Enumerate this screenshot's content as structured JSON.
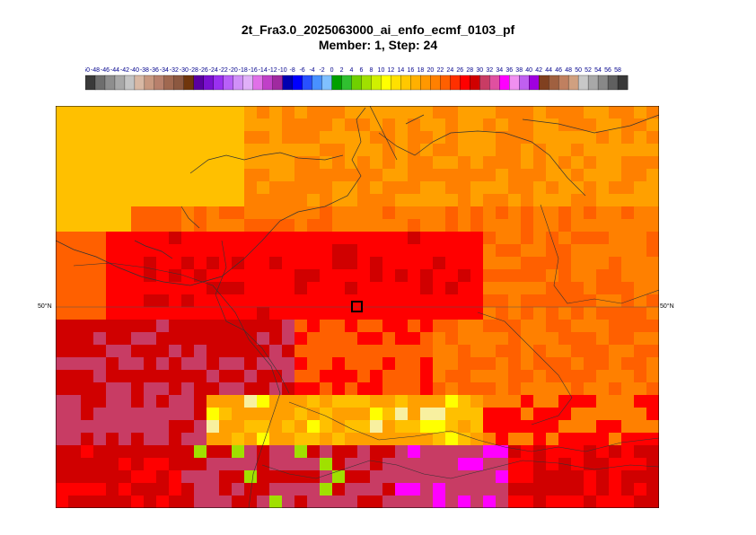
{
  "title": {
    "line1": "2t_Fra3.0_2025063000_ai_enfo_ecmf_0103_pf",
    "line2": "Member: 1, Step: 24"
  },
  "colorbar": {
    "tick_labels": [
      "-50",
      "-48",
      "-46",
      "-44",
      "-42",
      "-40",
      "-38",
      "-36",
      "-34",
      "-32",
      "-30",
      "-28",
      "-26",
      "-24",
      "-22",
      "-20",
      "-18",
      "-16",
      "-14",
      "-12",
      "-10",
      "-8",
      "-6",
      "-4",
      "-2",
      "0",
      "2",
      "4",
      "6",
      "8",
      "10",
      "12",
      "14",
      "16",
      "18",
      "20",
      "22",
      "24",
      "26",
      "28",
      "30",
      "32",
      "34",
      "36",
      "38",
      "40",
      "42",
      "44",
      "46",
      "48",
      "50",
      "52",
      "54",
      "56",
      "58"
    ],
    "colors": [
      "#3a3a3a",
      "#6e6e6e",
      "#8e8e8e",
      "#a8a8a8",
      "#c4c4c4",
      "#d8b8a4",
      "#c89880",
      "#b8806c",
      "#a06850",
      "#8c5840",
      "#70360c",
      "#5a00a0",
      "#7a10d0",
      "#9a30f0",
      "#b860f8",
      "#d090f8",
      "#e0b0f8",
      "#e070e8",
      "#c040c8",
      "#a02aa0",
      "#0000b0",
      "#0000ff",
      "#2850ff",
      "#4890ff",
      "#80c0ff",
      "#00a000",
      "#30c030",
      "#70d000",
      "#a0e000",
      "#d0f000",
      "#ffff00",
      "#ffe000",
      "#ffc800",
      "#ffb000",
      "#ff9800",
      "#ff8000",
      "#ff6000",
      "#ff3000",
      "#ff0000",
      "#d00000",
      "#c83c64",
      "#e050a0",
      "#ff00ff",
      "#f090f0",
      "#c060f0",
      "#a000e0",
      "#804020",
      "#a06040",
      "#c08060",
      "#d0a080",
      "#c8c8c8",
      "#a8a8a8",
      "#888888",
      "#606060",
      "#383838"
    ]
  },
  "map": {
    "lat_label": "50°N",
    "marker": "location-marker"
  }
}
